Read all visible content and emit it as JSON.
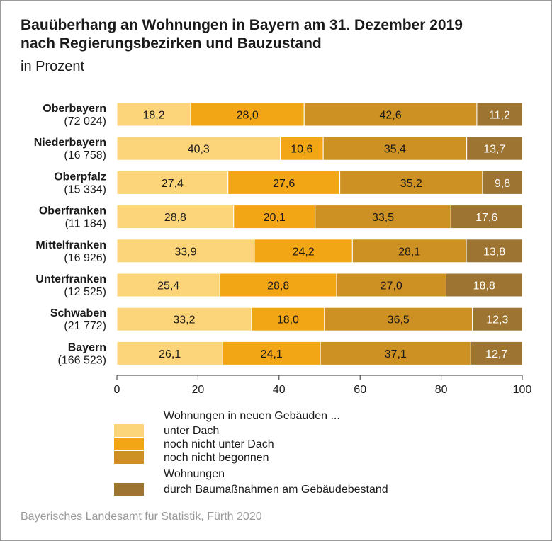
{
  "title_line1": "Bauüberhang an Wohnungen in Bayern am 31. Dezember 2019",
  "title_line2": "nach Regierungsbezirken und Bauzustand",
  "subtitle": "in Prozent",
  "source": "Bayerisches Landesamt für Statistik, Fürth 2020",
  "legend": {
    "heading": "Wohnungen in neuen Gebäuden ...",
    "heading2": "Wohnungen",
    "items": [
      "unter Dach",
      "noch nicht unter Dach",
      "noch nicht begonnen",
      "durch Baumaßnahmen am Gebäudebestand"
    ]
  },
  "colors": {
    "unter_dach": "#fcd57a",
    "noch_nicht_unter_dach": "#f2a515",
    "noch_nicht_begonnen": "#cd9022",
    "gebaeudebestand": "#9d7431",
    "value_label_dark": "#1a1a1a",
    "value_label_light": "#ffffff"
  },
  "chart_data": {
    "type": "bar",
    "orientation": "horizontal",
    "stacked": true,
    "categories": [
      "Oberbayern",
      "Niederbayern",
      "Oberpfalz",
      "Oberfranken",
      "Mittelfranken",
      "Unterfranken",
      "Schwaben",
      "Bayern"
    ],
    "category_counts": [
      "(72 024)",
      "(16 758)",
      "(15 334)",
      "(11 184)",
      "(16 926)",
      "(12 525)",
      "(21 772)",
      "(166 523)"
    ],
    "series": [
      {
        "name": "unter Dach",
        "values": [
          18.2,
          40.3,
          27.4,
          28.8,
          33.9,
          25.4,
          33.2,
          26.1
        ]
      },
      {
        "name": "noch nicht unter Dach",
        "values": [
          28.0,
          10.6,
          27.6,
          20.1,
          24.2,
          28.8,
          18.0,
          24.1
        ]
      },
      {
        "name": "noch nicht begonnen",
        "values": [
          42.6,
          35.4,
          35.2,
          33.5,
          28.1,
          27.0,
          36.5,
          37.1
        ]
      },
      {
        "name": "durch Baumaßnahmen am Gebäudebestand",
        "values": [
          11.2,
          13.7,
          9.8,
          17.6,
          13.8,
          18.8,
          12.3,
          12.7
        ]
      }
    ],
    "value_labels": [
      [
        "18,2",
        "28,0",
        "42,6",
        "11,2"
      ],
      [
        "40,3",
        "10,6",
        "35,4",
        "13,7"
      ],
      [
        "27,4",
        "27,6",
        "35,2",
        "9,8"
      ],
      [
        "28,8",
        "20,1",
        "33,5",
        "17,6"
      ],
      [
        "33,9",
        "24,2",
        "28,1",
        "13,8"
      ],
      [
        "25,4",
        "28,8",
        "27,0",
        "18,8"
      ],
      [
        "33,2",
        "18,0",
        "36,5",
        "12,3"
      ],
      [
        "26,1",
        "24,1",
        "37,1",
        "12,7"
      ]
    ],
    "x_ticks": [
      "0",
      "20",
      "40",
      "60",
      "80",
      "100"
    ],
    "xlim": [
      0,
      100
    ],
    "grid": false,
    "legend_position": "bottom"
  }
}
